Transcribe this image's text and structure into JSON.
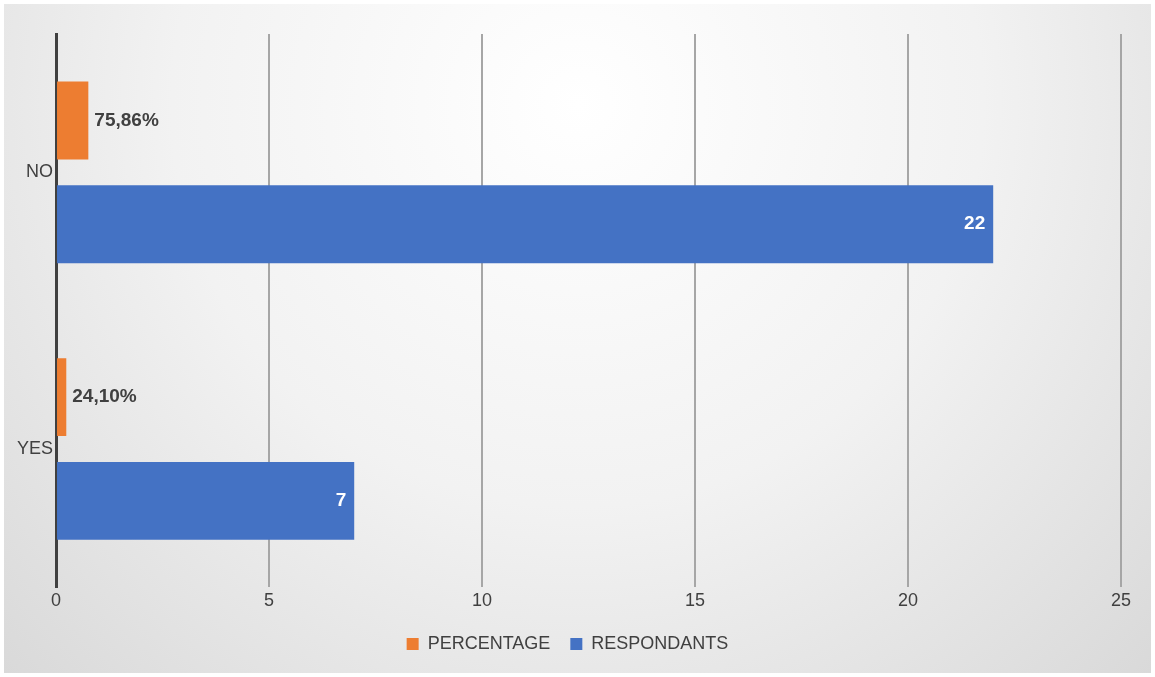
{
  "chart_data": {
    "type": "bar",
    "orientation": "horizontal",
    "categories": [
      "NO",
      "YES"
    ],
    "series": [
      {
        "name": "PERCENTAGE",
        "color": "#ed7d31",
        "values": [
          0.7586,
          0.241
        ],
        "value_labels": [
          "75,86%",
          "24,10%"
        ]
      },
      {
        "name": "RESPONDANTS",
        "color": "#4472c4",
        "values": [
          22,
          7
        ],
        "value_labels": [
          "22",
          "7"
        ]
      }
    ],
    "xlim": [
      0,
      25
    ],
    "xticks": [
      0,
      5,
      10,
      15,
      20,
      25
    ],
    "grid": "x",
    "legend": "bottom"
  }
}
